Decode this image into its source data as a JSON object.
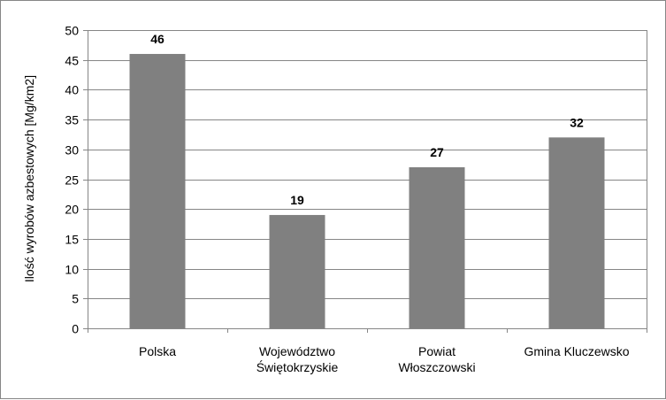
{
  "chart_data": {
    "type": "bar",
    "title": "",
    "xlabel": "",
    "ylabel": "Ilość wyrobów azbestowych [Mg/km2]",
    "ylim": [
      0,
      50
    ],
    "ytick_step": 5,
    "grid": true,
    "legend": "none",
    "categories": [
      [
        "Polska"
      ],
      [
        "Województwo",
        "Świętokrzyskie"
      ],
      [
        "Powiat",
        "Włoszczowski"
      ],
      [
        "Gmina Kluczewsko"
      ]
    ],
    "values": [
      46,
      19,
      27,
      32
    ],
    "colors": {
      "bar": "#808080",
      "grid": "#868686",
      "axis": "#868686",
      "border": "#868686"
    }
  }
}
